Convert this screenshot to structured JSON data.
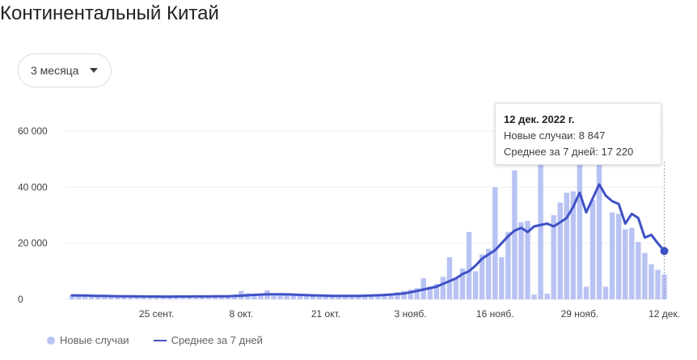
{
  "header": {
    "title": "Континентальный Китай"
  },
  "range_selector": {
    "label": "3 месяца",
    "icon": "caret-down-icon"
  },
  "tooltip": {
    "date": "12 дек. 2022 г.",
    "new_cases": "Новые случаи: 8 847",
    "avg7": "Среднее за 7 дней: 17 220"
  },
  "legend": {
    "bars_label": "Новые случаи",
    "line_label": "Среднее за 7 дней"
  },
  "colors": {
    "bars": "#b8c3f4",
    "line": "#3f51c5",
    "grid": "#eeeeee"
  },
  "chart_data": {
    "type": "bar",
    "title": "Континентальный Китай",
    "xlabel": "",
    "ylabel": "",
    "ylim": [
      0,
      60000
    ],
    "y_ticks": [
      0,
      20000,
      40000,
      60000
    ],
    "y_tick_labels": [
      "0",
      "20 000",
      "40 000",
      "60 000"
    ],
    "x_ticks": [
      {
        "day": 13,
        "label": "25 сент."
      },
      {
        "day": 26,
        "label": "8 окт."
      },
      {
        "day": 39,
        "label": "21 окт."
      },
      {
        "day": 52,
        "label": "3 нояб."
      },
      {
        "day": 65,
        "label": "16 нояб."
      },
      {
        "day": 78,
        "label": "29 нояб."
      },
      {
        "day": 91,
        "label": "12 дек."
      }
    ],
    "highlight_day": 91,
    "series": [
      {
        "name": "Новые случаи",
        "kind": "bar",
        "values": [
          1500,
          1300,
          1200,
          1100,
          1000,
          1000,
          950,
          1000,
          1100,
          1000,
          900,
          950,
          1000,
          950,
          900,
          950,
          1000,
          1100,
          1000,
          1050,
          1100,
          1000,
          1000,
          1100,
          1100,
          1400,
          3000,
          2200,
          1500,
          1300,
          3200,
          1800,
          1500,
          1600,
          1500,
          1400,
          1300,
          1200,
          1300,
          1200,
          1100,
          1200,
          1100,
          1100,
          1200,
          1300,
          1500,
          1400,
          1800,
          2200,
          2500,
          3000,
          3500,
          4000,
          7500,
          4500,
          5500,
          8000,
          15000,
          7500,
          11000,
          24000,
          10000,
          16000,
          18000,
          40000,
          15000,
          24000,
          46000,
          27500,
          28000,
          1700,
          63000,
          2000,
          30000,
          34500,
          38000,
          38500,
          63000,
          4500,
          35500,
          63000,
          4500,
          31000,
          30500,
          25000,
          25500,
          20500,
          16500,
          12500,
          10500,
          8847
        ]
      },
      {
        "name": "Среднее за 7 дней",
        "kind": "line",
        "values": [
          1400,
          1380,
          1350,
          1300,
          1250,
          1200,
          1150,
          1120,
          1100,
          1080,
          1050,
          1030,
          1020,
          1000,
          990,
          990,
          1000,
          1010,
          1020,
          1030,
          1040,
          1050,
          1060,
          1080,
          1100,
          1200,
          1300,
          1450,
          1600,
          1700,
          1750,
          1800,
          1800,
          1750,
          1700,
          1600,
          1500,
          1400,
          1350,
          1300,
          1250,
          1220,
          1200,
          1220,
          1250,
          1300,
          1350,
          1450,
          1550,
          1700,
          1900,
          2100,
          2500,
          3000,
          3500,
          4000,
          4500,
          5500,
          6500,
          7500,
          9000,
          10000,
          12000,
          14500,
          16000,
          17500,
          20000,
          22500,
          24500,
          25500,
          24000,
          26000,
          26500,
          27000,
          26000,
          27500,
          29000,
          33000,
          38000,
          31000,
          36000,
          41000,
          37000,
          35000,
          34000,
          27000,
          30500,
          29000,
          22000,
          23000,
          20000,
          17220
        ]
      }
    ]
  }
}
